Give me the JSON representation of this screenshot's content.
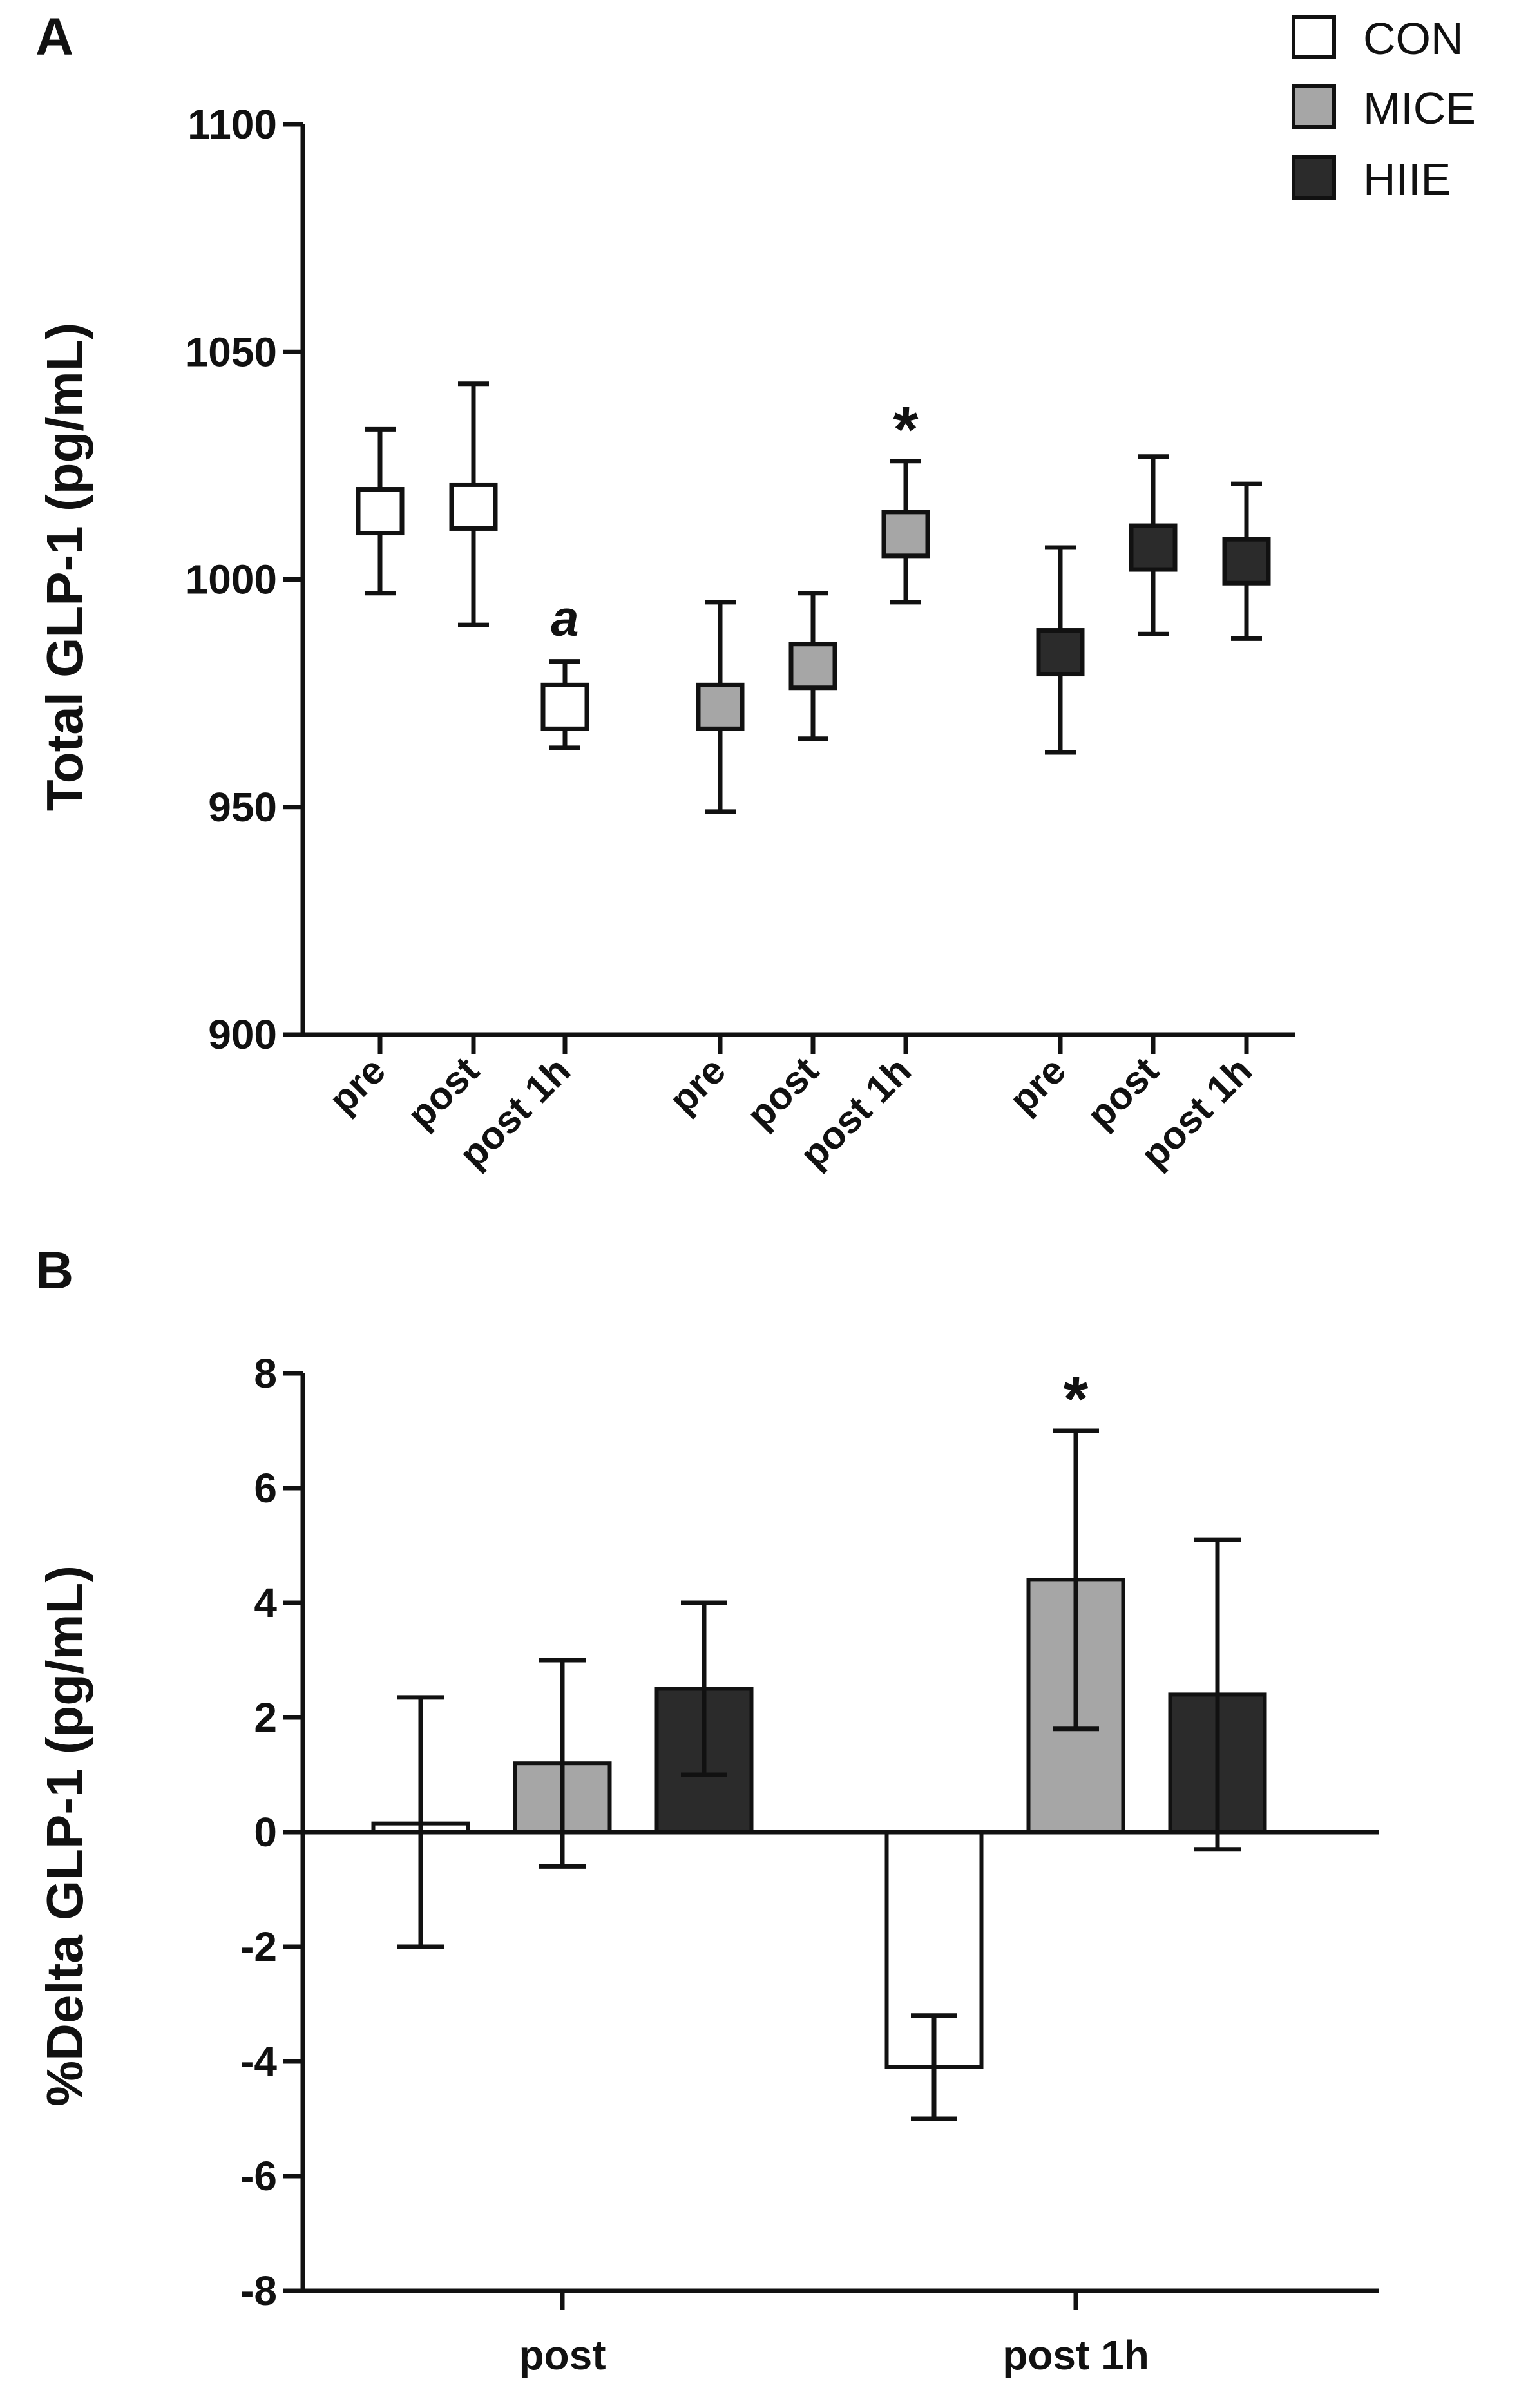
{
  "legend": [
    {
      "label": "CON",
      "color": "#ffffff"
    },
    {
      "label": "MICE",
      "color": "#a6a6a6"
    },
    {
      "label": "HIIE",
      "color": "#2b2b2b"
    }
  ],
  "chart_data": [
    {
      "panel": "A",
      "type": "scatter",
      "ylabel": "Total GLP-1 (pg/mL)",
      "ylim": [
        900,
        1100
      ],
      "yticks": [
        900,
        950,
        1000,
        1050,
        1100
      ],
      "categories": [
        "pre",
        "post",
        "post 1h",
        "pre",
        "post",
        "post 1h",
        "pre",
        "post",
        "post 1h"
      ],
      "series": [
        {
          "name": "CON",
          "color": "#ffffff",
          "x": [
            "pre",
            "post",
            "post 1h"
          ],
          "y": [
            1015,
            1016,
            972
          ],
          "err_low": [
            997,
            990,
            963
          ],
          "err_high": [
            1033,
            1043,
            982
          ]
        },
        {
          "name": "MICE",
          "color": "#a6a6a6",
          "x": [
            "pre",
            "post",
            "post 1h"
          ],
          "y": [
            972,
            981,
            1010
          ],
          "err_low": [
            949,
            965,
            995
          ],
          "err_high": [
            995,
            997,
            1026
          ]
        },
        {
          "name": "HIIE",
          "color": "#2b2b2b",
          "x": [
            "pre",
            "post",
            "post 1h"
          ],
          "y": [
            984,
            1007,
            1004
          ],
          "err_low": [
            962,
            988,
            987
          ],
          "err_high": [
            1007,
            1027,
            1021
          ]
        }
      ],
      "annotations": [
        {
          "text": "a",
          "series": "CON",
          "x": "post 1h"
        },
        {
          "text": "*",
          "series": "MICE",
          "x": "post 1h"
        }
      ]
    },
    {
      "panel": "B",
      "type": "bar",
      "ylabel": "%Delta GLP-1 (pg/mL)",
      "ylim": [
        -8,
        8
      ],
      "yticks": [
        -8,
        -6,
        -4,
        -2,
        0,
        2,
        4,
        6,
        8
      ],
      "categories": [
        "post",
        "post 1h"
      ],
      "series": [
        {
          "name": "CON",
          "color": "#ffffff",
          "values": [
            0.15,
            -4.1
          ],
          "err_low": [
            -2.0,
            -5.0
          ],
          "err_high": [
            2.35,
            -3.2
          ]
        },
        {
          "name": "MICE",
          "color": "#a6a6a6",
          "values": [
            1.2,
            4.4
          ],
          "err_low": [
            -0.6,
            1.8
          ],
          "err_high": [
            3.0,
            7.0
          ]
        },
        {
          "name": "HIIE",
          "color": "#2b2b2b",
          "values": [
            2.5,
            2.4
          ],
          "err_low": [
            1.0,
            -0.3
          ],
          "err_high": [
            4.0,
            5.1
          ]
        }
      ],
      "annotations": [
        {
          "text": "*",
          "series": "MICE",
          "category": "post 1h"
        }
      ]
    }
  ]
}
